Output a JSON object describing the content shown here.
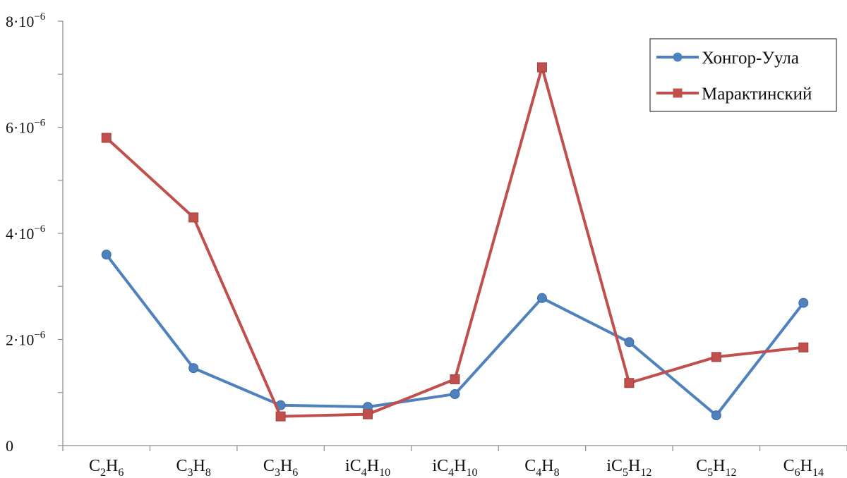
{
  "chart_data": {
    "type": "line",
    "title": "",
    "xlabel": "",
    "ylabel": "",
    "categories": [
      {
        "base": "C",
        "sub1": "2",
        "mid": "H",
        "sub2": "6"
      },
      {
        "base": "C",
        "sub1": "3",
        "mid": "H",
        "sub2": "8"
      },
      {
        "base": "C",
        "sub1": "3",
        "mid": "H",
        "sub2": "6"
      },
      {
        "base": "iC",
        "sub1": "4",
        "mid": "H",
        "sub2": "10"
      },
      {
        "base": "iC",
        "sub1": "4",
        "mid": "H",
        "sub2": "10"
      },
      {
        "base": "C",
        "sub1": "4",
        "mid": "H",
        "sub2": "8"
      },
      {
        "base": "iC",
        "sub1": "5",
        "mid": "H",
        "sub2": "12"
      },
      {
        "base": "C",
        "sub1": "5",
        "mid": "H",
        "sub2": "12"
      },
      {
        "base": "C",
        "sub1": "6",
        "mid": "H",
        "sub2": "14"
      }
    ],
    "ylim": [
      0,
      8e-06
    ],
    "major_ticks": [
      {
        "value": 0,
        "mant": "0",
        "exp": ""
      },
      {
        "value": 2e-06,
        "mant": "2·10",
        "exp": "−6"
      },
      {
        "value": 4e-06,
        "mant": "4·10",
        "exp": "−6"
      },
      {
        "value": 6e-06,
        "mant": "6·10",
        "exp": "−6"
      },
      {
        "value": 8e-06,
        "mant": "8·10",
        "exp": "−6"
      }
    ],
    "minor_ticks": [
      1e-06,
      3e-06,
      5e-06,
      7e-06
    ],
    "grid": false,
    "legend_position": "top-right",
    "series": [
      {
        "name": "Хонгор-Уула",
        "color": "#4f81bd",
        "marker": "circle",
        "values": [
          3.6e-06,
          1.46e-06,
          7.6e-07,
          7.3e-07,
          9.7e-07,
          2.78e-06,
          1.95e-06,
          5.7e-07,
          2.69e-06
        ]
      },
      {
        "name": "Марактинский",
        "color": "#c0504d",
        "marker": "square",
        "values": [
          5.8e-06,
          4.3e-06,
          5.5e-07,
          5.9e-07,
          1.25e-06,
          7.13e-06,
          1.18e-06,
          1.67e-06,
          1.85e-06
        ]
      }
    ]
  }
}
